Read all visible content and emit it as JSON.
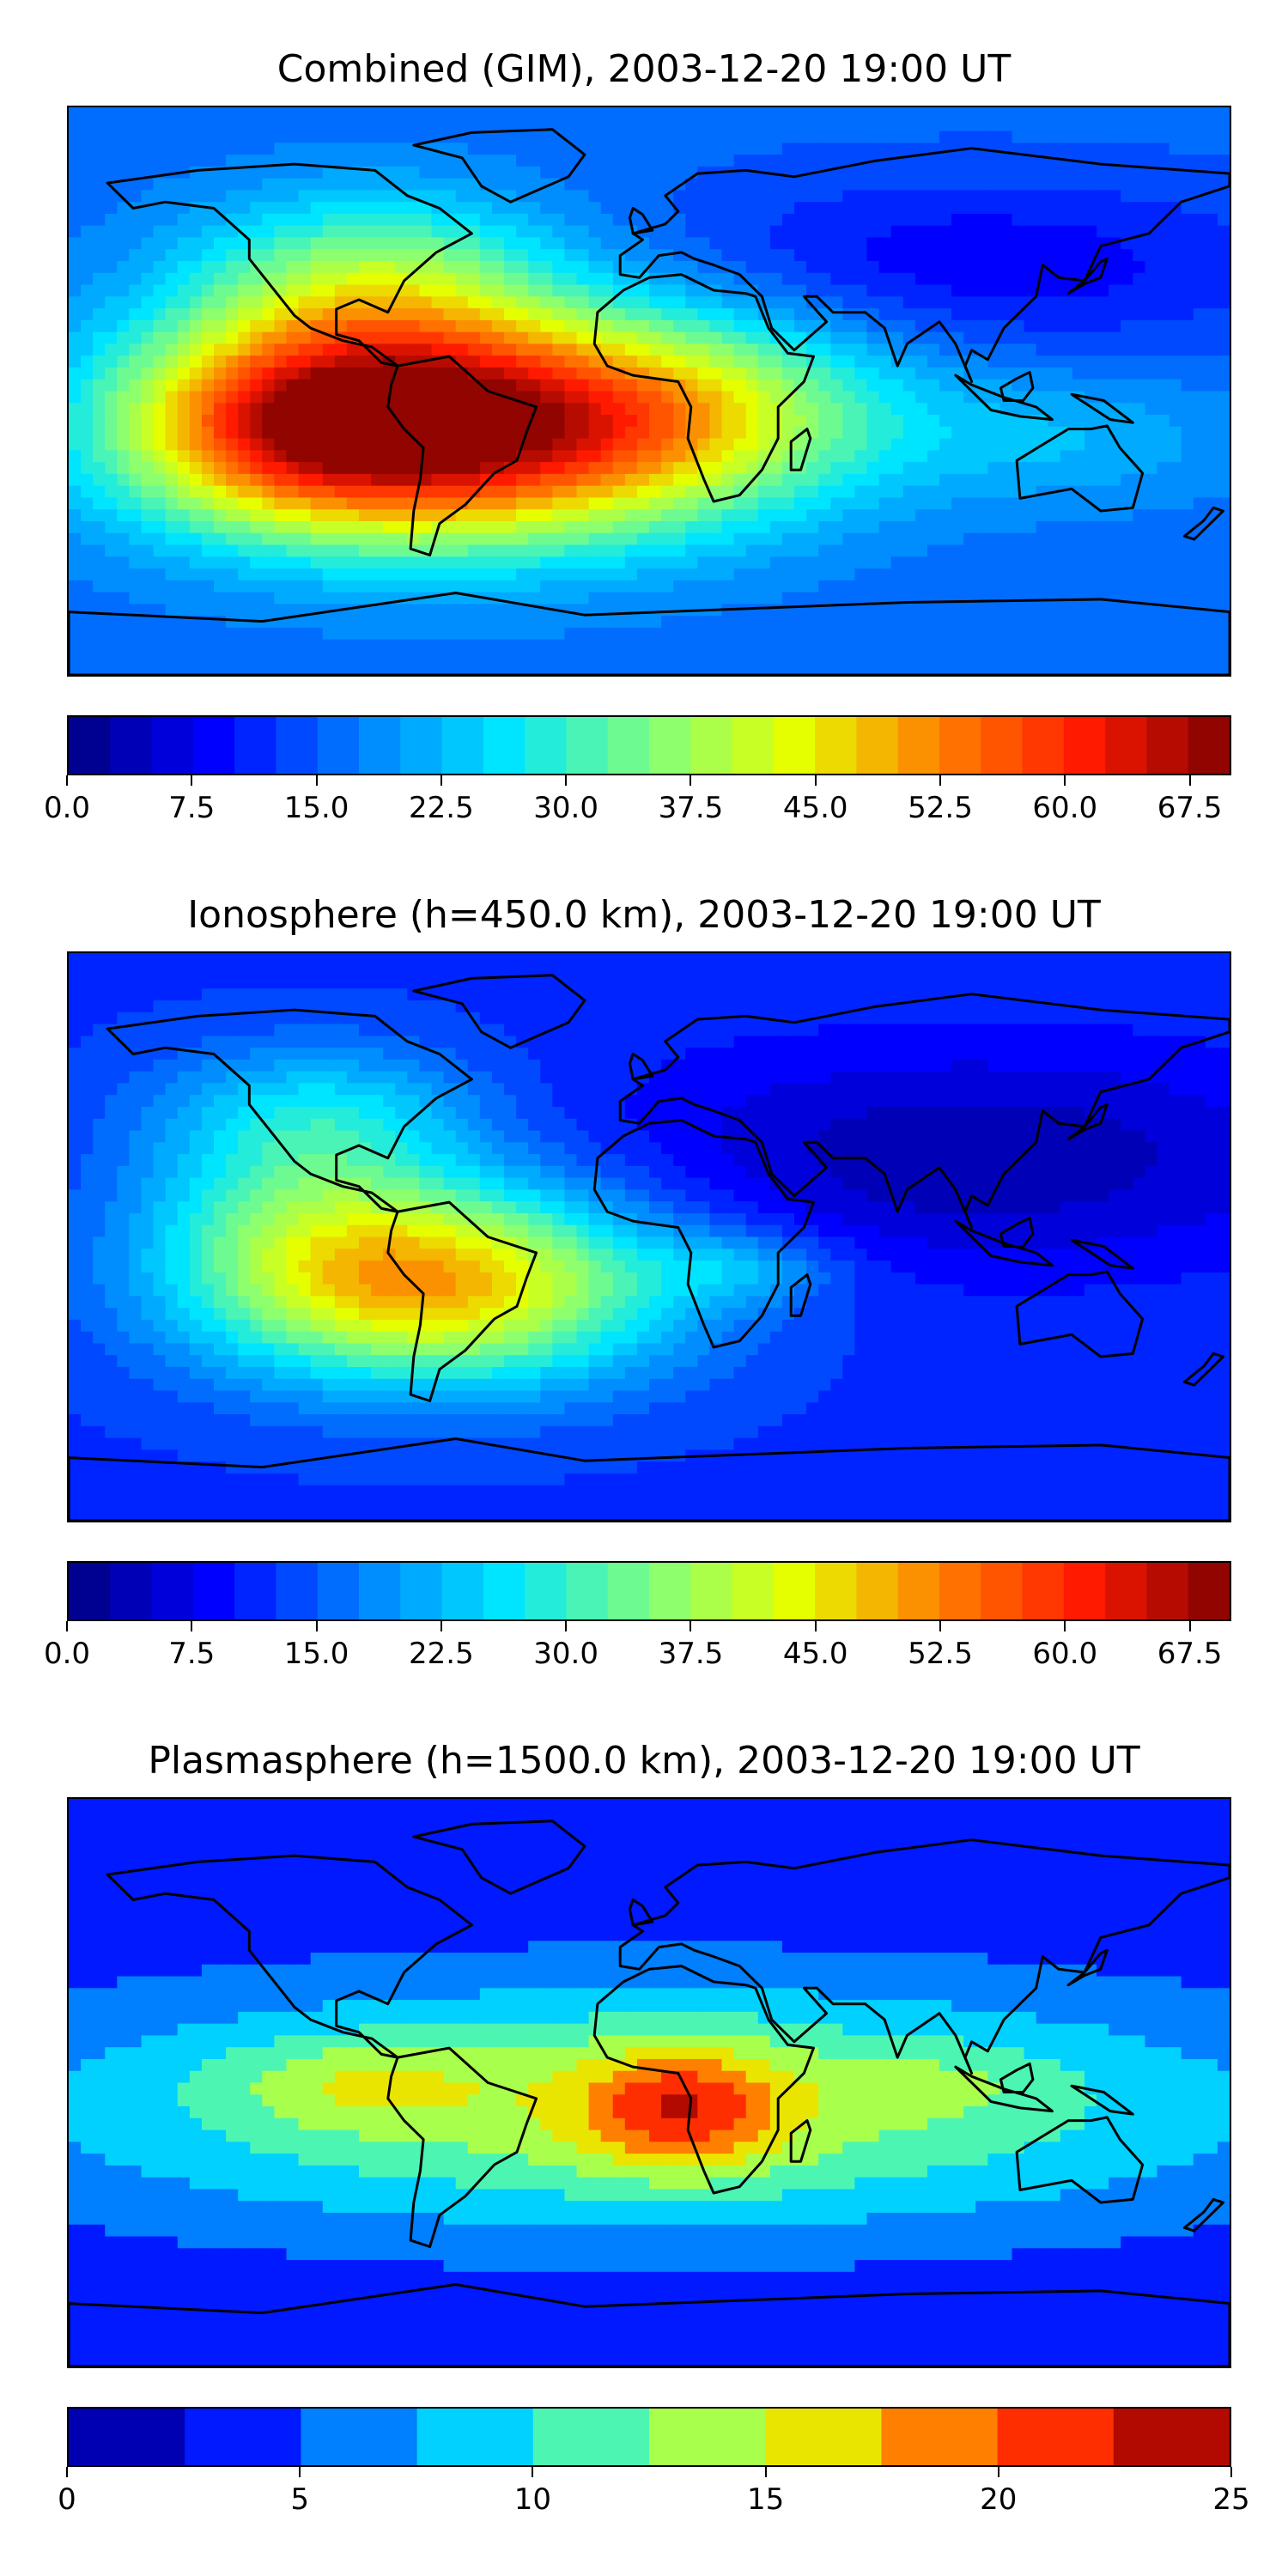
{
  "figure": {
    "panels": [
      {
        "id": "combined",
        "title": "Combined (GIM), 2003-12-20 19:00 UT",
        "colorbar": {
          "min": 0,
          "max": 70,
          "levels": 28,
          "ticks": [
            "0.0",
            "7.5",
            "15.0",
            "22.5",
            "30.0",
            "37.5",
            "45.0",
            "52.5",
            "60.0",
            "67.5"
          ],
          "tick_values": [
            0,
            7.5,
            15,
            22.5,
            30,
            37.5,
            45,
            52.5,
            60,
            67.5
          ]
        },
        "background_value": 16,
        "features": [
          {
            "lon": -60,
            "lat": -12,
            "sx": 60,
            "sy": 25,
            "amp": 48
          },
          {
            "lon": -110,
            "lat": -10,
            "sx": 40,
            "sy": 22,
            "amp": 22
          },
          {
            "lon": -85,
            "lat": 35,
            "sx": 40,
            "sy": 20,
            "amp": 18
          },
          {
            "lon": 20,
            "lat": -5,
            "sx": 45,
            "sy": 22,
            "amp": 14
          },
          {
            "lon": 130,
            "lat": -15,
            "sx": 40,
            "sy": 15,
            "amp": 6
          },
          {
            "lon": 100,
            "lat": 40,
            "sx": 70,
            "sy": 20,
            "amp": -8
          }
        ]
      },
      {
        "id": "ionosphere",
        "title": "Ionosphere  (h=450.0 km), 2003-12-20 19:00 UT",
        "colorbar": {
          "min": 0,
          "max": 70,
          "levels": 28,
          "ticks": [
            "0.0",
            "7.5",
            "15.0",
            "22.5",
            "30.0",
            "37.5",
            "45.0",
            "52.5",
            "60.0",
            "67.5"
          ],
          "tick_values": [
            0,
            7.5,
            15,
            22.5,
            30,
            37.5,
            45,
            52.5,
            60,
            67.5
          ]
        },
        "background_value": 12,
        "features": [
          {
            "lon": -65,
            "lat": -15,
            "sx": 50,
            "sy": 22,
            "amp": 36
          },
          {
            "lon": -110,
            "lat": 10,
            "sx": 35,
            "sy": 25,
            "amp": 12
          },
          {
            "lon": -100,
            "lat": 40,
            "sx": 35,
            "sy": 15,
            "amp": 10
          },
          {
            "lon": 30,
            "lat": -10,
            "sx": 20,
            "sy": 8,
            "amp": 8
          },
          {
            "lon": 100,
            "lat": 25,
            "sx": 80,
            "sy": 25,
            "amp": -9
          }
        ]
      },
      {
        "id": "plasmasphere",
        "title": "Plasmasphere (h=1500.0 km), 2003-12-20 19:00 UT",
        "colorbar": {
          "min": 0,
          "max": 25,
          "levels": 10,
          "ticks": [
            "0",
            "5",
            "10",
            "15",
            "20",
            "25"
          ],
          "tick_values": [
            0,
            5,
            10,
            15,
            20,
            25
          ]
        },
        "background_value": 3,
        "features": [
          {
            "lon": 0,
            "lat": -8,
            "sx": 140,
            "sy": 28,
            "amp": 11
          },
          {
            "lon": 10,
            "lat": -8,
            "sx": 22,
            "sy": 14,
            "amp": 9
          },
          {
            "lon": -90,
            "lat": 0,
            "sx": 30,
            "sy": 10,
            "amp": 4
          },
          {
            "lon": 90,
            "lat": 0,
            "sx": 25,
            "sy": 8,
            "amp": 2
          }
        ]
      }
    ],
    "colors": {
      "jet": [
        "#00007f",
        "#0000ff",
        "#007fff",
        "#00e5ff",
        "#7fff7f",
        "#e5ff00",
        "#ff7f00",
        "#ff1a00",
        "#7f0000"
      ],
      "land_outline": "#000000"
    }
  },
  "chart_data": [
    {
      "type": "heatmap",
      "title": "Combined (GIM), 2003-12-20 19:00 UT",
      "xlabel": "",
      "ylabel": "",
      "colorbar_range": [
        0,
        70
      ],
      "colorbar_ticks": [
        0,
        7.5,
        15,
        22.5,
        30,
        37.5,
        45,
        52.5,
        60,
        67.5
      ],
      "peak_region": "South America",
      "peak_value_approx": 64
    },
    {
      "type": "heatmap",
      "title": "Ionosphere  (h=450.0 km), 2003-12-20 19:00 UT",
      "xlabel": "",
      "ylabel": "",
      "colorbar_range": [
        0,
        70
      ],
      "colorbar_ticks": [
        0,
        7.5,
        15,
        22.5,
        30,
        37.5,
        45,
        52.5,
        60,
        67.5
      ],
      "peak_region": "South America",
      "peak_value_approx": 48
    },
    {
      "type": "heatmap",
      "title": "Plasmasphere (h=1500.0 km), 2003-12-20 19:00 UT",
      "xlabel": "",
      "ylabel": "",
      "colorbar_range": [
        0,
        25
      ],
      "colorbar_ticks": [
        0,
        5,
        10,
        15,
        20,
        25
      ],
      "peak_region": "Central Africa",
      "peak_value_approx": 22
    }
  ]
}
